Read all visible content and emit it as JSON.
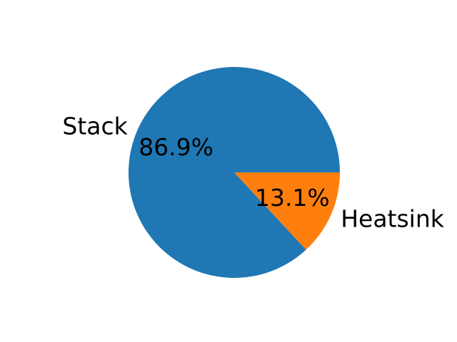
{
  "chart_data": {
    "type": "pie",
    "title": "",
    "slices": [
      {
        "label": "Stack",
        "value": 86.9,
        "pct_label": "86.9%",
        "color": "#1f77b4"
      },
      {
        "label": "Heatsink",
        "value": 13.1,
        "pct_label": "13.1%",
        "color": "#ff7f0e"
      }
    ],
    "start_angle_deg": 0,
    "direction": "counterclockwise",
    "legend": "none"
  }
}
